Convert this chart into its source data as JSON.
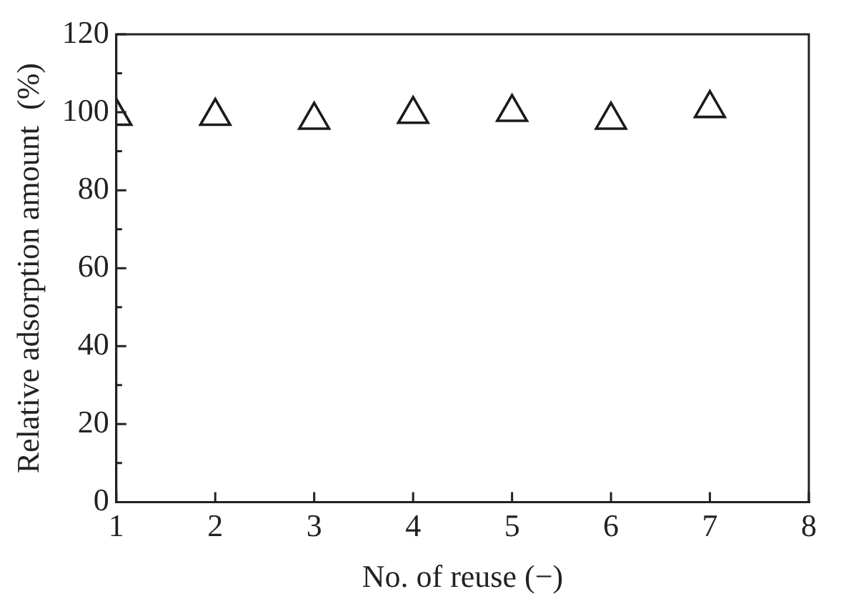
{
  "chart_data": {
    "type": "scatter",
    "xlabel": "No. of reuse (−)",
    "ylabel": "Relative adsorption amount  (%)",
    "x": [
      1,
      2,
      3,
      4,
      5,
      6,
      7
    ],
    "series": [
      {
        "color": "#1a1a1a",
        "values": [
          99,
          99,
          98,
          99.5,
          100,
          98,
          101
        ]
      }
    ],
    "xlim": [
      1,
      8
    ],
    "xticks": [
      1,
      2,
      3,
      4,
      5,
      6,
      7,
      8
    ],
    "ylim": [
      0,
      120
    ],
    "yticks": [
      0,
      20,
      40,
      60,
      80,
      100,
      120
    ],
    "grid": false,
    "legend": false,
    "marker": "triangle"
  }
}
